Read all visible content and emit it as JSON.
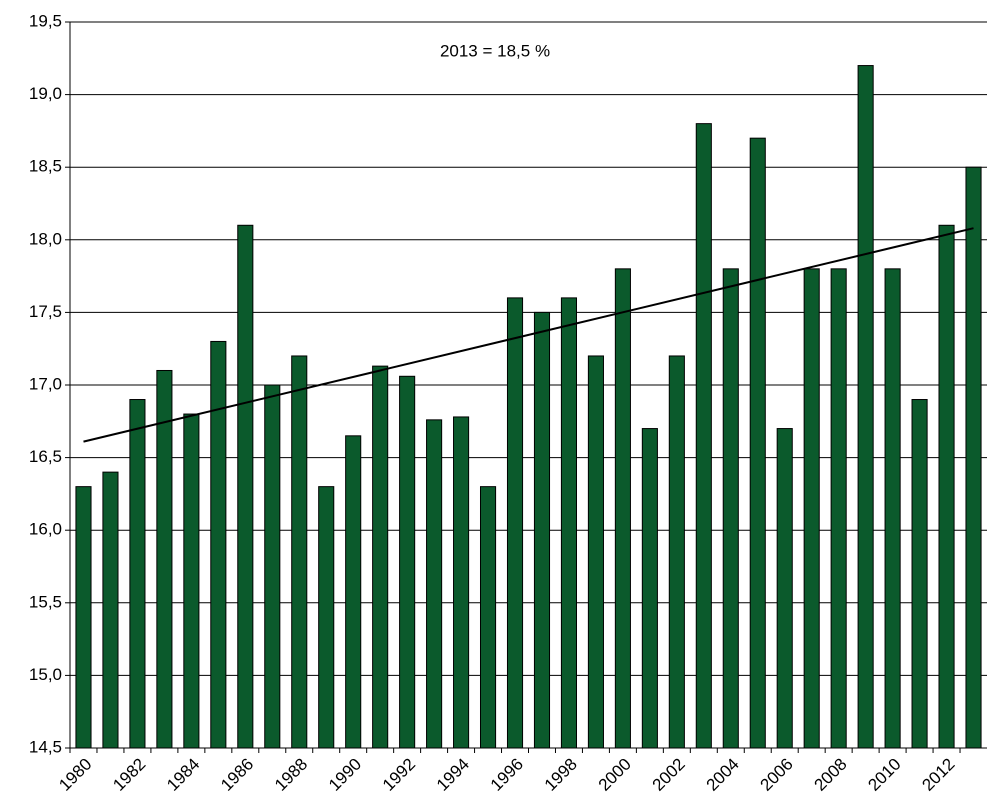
{
  "chart_data": {
    "type": "bar",
    "annotation": "2013 = 18,5 %",
    "categories": [
      "1980",
      null,
      "1982",
      null,
      "1984",
      null,
      "1986",
      null,
      "1988",
      null,
      "1990",
      null,
      "1992",
      null,
      "1994",
      null,
      "1996",
      null,
      "1998",
      null,
      "2000",
      null,
      "2002",
      null,
      "2004",
      null,
      "2006",
      null,
      "2008",
      null,
      "2010",
      null,
      "2012",
      null
    ],
    "values": [
      16.3,
      16.4,
      16.9,
      17.1,
      16.8,
      17.3,
      18.1,
      17.0,
      17.2,
      16.3,
      16.65,
      17.13,
      17.06,
      16.76,
      16.78,
      16.3,
      17.6,
      17.5,
      17.6,
      17.2,
      17.8,
      16.7,
      17.2,
      18.8,
      17.8,
      18.7,
      16.7,
      17.8,
      17.8,
      19.2,
      17.8,
      16.9,
      18.1,
      18.5
    ],
    "color": "#0b5a2c",
    "trendline": [
      16.61,
      18.08
    ],
    "ylim": [
      14.5,
      19.5
    ],
    "yticks": [
      {
        "value": 14.5,
        "label": "14,5"
      },
      {
        "value": 15,
        "label": "15,0"
      },
      {
        "value": 15.5,
        "label": "15,5"
      },
      {
        "value": 16,
        "label": "16,0"
      },
      {
        "value": 16.5,
        "label": "16,5"
      },
      {
        "value": 17,
        "label": "17,0"
      },
      {
        "value": 17.5,
        "label": "17,5"
      },
      {
        "value": 18,
        "label": "18,0"
      },
      {
        "value": 18.5,
        "label": "18,5"
      },
      {
        "value": 19,
        "label": "19,0"
      },
      {
        "value": 19.5,
        "label": "19,5"
      }
    ],
    "grid": true
  }
}
